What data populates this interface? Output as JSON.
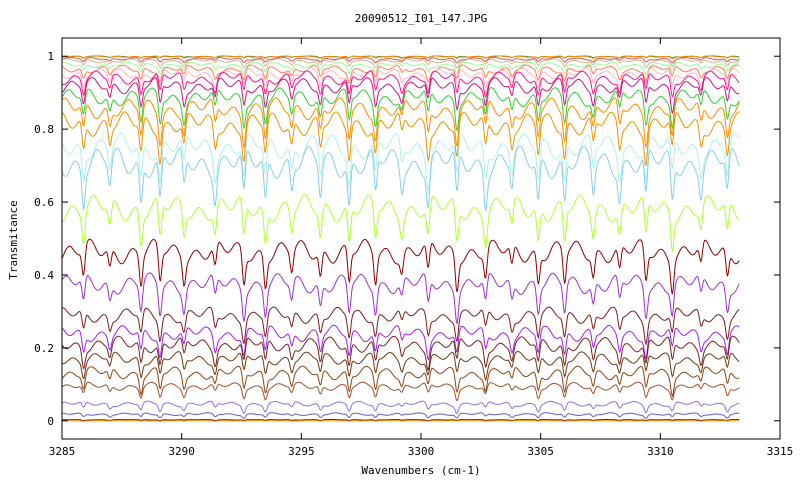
{
  "chart_data": {
    "type": "line",
    "title": "20090512_I01_147.JPG",
    "xlabel": "Wavenumbers (cm-1)",
    "ylabel": "Transmitance",
    "xlim": [
      3285,
      3315
    ],
    "ylim": [
      -0.05,
      1.05
    ],
    "data_x_range": [
      3285,
      3313.3
    ],
    "x_ticks": [
      "3285",
      "3290",
      "3295",
      "3300",
      "3305",
      "3310",
      "3315"
    ],
    "y_ticks": [
      "0",
      "0.2",
      "0.4",
      "0.6",
      "0.8",
      "1"
    ],
    "grid": false,
    "legend": "none",
    "absorption_lines_cm1": [
      3285.9,
      3287.0,
      3288.3,
      3289.1,
      3290.1,
      3291.4,
      3292.6,
      3293.5,
      3294.6,
      3295.8,
      3297.0,
      3298.1,
      3299.2,
      3300.3,
      3301.5,
      3302.7,
      3303.8,
      3304.9,
      3306.0,
      3307.2,
      3308.3,
      3309.4,
      3310.5,
      3311.7,
      3312.8
    ],
    "series": [
      {
        "color": "#2e8b57",
        "baseline": 1.0,
        "depth": 0.004
      },
      {
        "color": "#ff8c00",
        "baseline": 1.0,
        "depth": 0.005
      },
      {
        "color": "#cd5c5c",
        "baseline": 0.995,
        "depth": 0.01
      },
      {
        "color": "#d2b48c",
        "baseline": 0.99,
        "depth": 0.015
      },
      {
        "color": "#98fb98",
        "baseline": 0.98,
        "depth": 0.02
      },
      {
        "color": "#ff7f50",
        "baseline": 0.97,
        "depth": 0.03
      },
      {
        "color": "#ffb6c1",
        "baseline": 0.96,
        "depth": 0.04
      },
      {
        "color": "#ff1493",
        "baseline": 0.95,
        "depth": 0.05
      },
      {
        "color": "#c71585",
        "baseline": 0.93,
        "depth": 0.06
      },
      {
        "color": "#32cd32",
        "baseline": 0.9,
        "depth": 0.07
      },
      {
        "color": "#ff8c00",
        "baseline": 0.87,
        "depth": 0.08
      },
      {
        "color": "#e69500",
        "baseline": 0.83,
        "depth": 0.09
      },
      {
        "color": "#afeeee",
        "baseline": 0.77,
        "depth": 0.1
      },
      {
        "color": "#87ceeb",
        "baseline": 0.73,
        "depth": 0.12
      },
      {
        "color": "#adff2f",
        "baseline": 0.6,
        "depth": 0.1
      },
      {
        "color": "#8b0000",
        "baseline": 0.48,
        "depth": 0.09
      },
      {
        "color": "#9932cc",
        "baseline": 0.39,
        "depth": 0.08
      },
      {
        "color": "#7b1d1d",
        "baseline": 0.3,
        "depth": 0.06
      },
      {
        "color": "#a020f0",
        "baseline": 0.25,
        "depth": 0.06
      },
      {
        "color": "#7a1f1f",
        "baseline": 0.22,
        "depth": 0.06
      },
      {
        "color": "#6b3a10",
        "baseline": 0.18,
        "depth": 0.05
      },
      {
        "color": "#8b4513",
        "baseline": 0.14,
        "depth": 0.05
      },
      {
        "color": "#a0522d",
        "baseline": 0.1,
        "depth": 0.03
      },
      {
        "color": "#9370db",
        "baseline": 0.05,
        "depth": 0.02
      },
      {
        "color": "#6a5acd",
        "baseline": 0.02,
        "depth": 0.01
      },
      {
        "color": "#8b0000",
        "baseline": 0.003,
        "depth": 0.002
      },
      {
        "color": "#ffa500",
        "baseline": 0.0,
        "depth": 0.001
      }
    ]
  }
}
